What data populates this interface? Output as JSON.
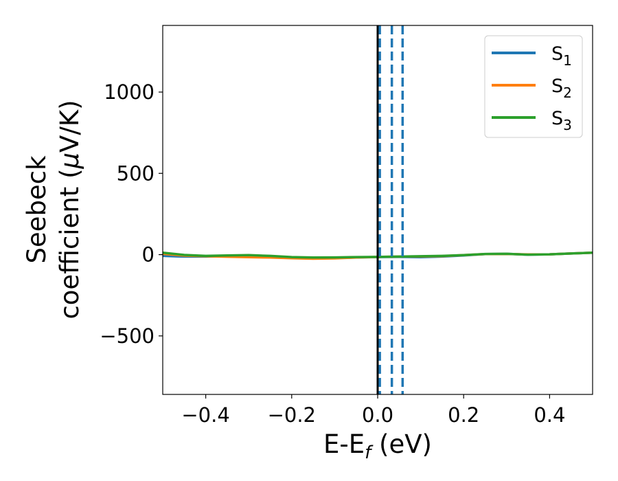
{
  "chart_data": {
    "type": "line",
    "xlabel": "E-E",
    "xlabel_sub": "f",
    "xlabel_unit": " (eV)",
    "ylabel_line1": "Seebeck",
    "ylabel_line2": "coefficient  (",
    "ylabel_mu": "μ",
    "ylabel_unit": "V/K)",
    "xlim": [
      -0.5,
      0.5
    ],
    "ylim": [
      -860,
      1410
    ],
    "xticks": [
      -0.4,
      -0.2,
      0.0,
      0.2,
      0.4
    ],
    "xtick_labels": [
      "−0.4",
      "−0.2",
      "0.0",
      "0.2",
      "0.4"
    ],
    "yticks": [
      -500,
      0,
      500,
      1000
    ],
    "ytick_labels": [
      "−500",
      "0",
      "500",
      "1000"
    ],
    "grid": false,
    "legend_position": "top-right",
    "vertical_lines": [
      {
        "x": 0.0,
        "color": "#000000",
        "style": "solid"
      },
      {
        "x": 0.005,
        "color": "#1f77b4",
        "style": "dashed"
      },
      {
        "x": 0.033,
        "color": "#1f77b4",
        "style": "dashed"
      },
      {
        "x": 0.058,
        "color": "#1f77b4",
        "style": "dashed"
      }
    ],
    "series": [
      {
        "name": "S",
        "sub": "1",
        "color": "#1f77b4",
        "x": [
          -0.5,
          -0.45,
          -0.4,
          -0.35,
          -0.3,
          -0.25,
          -0.2,
          -0.15,
          -0.1,
          -0.05,
          0.0,
          0.05,
          0.1,
          0.15,
          0.2,
          0.25,
          0.3,
          0.35,
          0.4,
          0.45,
          0.5
        ],
        "values": [
          -8,
          -12,
          -12,
          -10,
          -9,
          -12,
          -18,
          -22,
          -20,
          -17,
          -15,
          -14,
          -16,
          -12,
          -5,
          3,
          5,
          0,
          2,
          7,
          12
        ]
      },
      {
        "name": "S",
        "sub": "2",
        "color": "#ff7f0e",
        "x": [
          -0.5,
          -0.45,
          -0.4,
          -0.35,
          -0.3,
          -0.25,
          -0.2,
          -0.15,
          -0.1,
          -0.05,
          0.0,
          0.05,
          0.1,
          0.15,
          0.2,
          0.25,
          0.3,
          0.35,
          0.4,
          0.45,
          0.5
        ],
        "values": [
          5,
          -6,
          -10,
          -13,
          -16,
          -18,
          -22,
          -25,
          -23,
          -18,
          -14,
          -12,
          -11,
          -9,
          -3,
          3,
          4,
          1,
          2,
          7,
          12
        ]
      },
      {
        "name": "S",
        "sub": "3",
        "color": "#2ca02c",
        "x": [
          -0.5,
          -0.45,
          -0.4,
          -0.35,
          -0.3,
          -0.25,
          -0.2,
          -0.15,
          -0.1,
          -0.05,
          0.0,
          0.05,
          0.1,
          0.15,
          0.2,
          0.25,
          0.3,
          0.35,
          0.4,
          0.45,
          0.5
        ],
        "values": [
          12,
          -2,
          -8,
          -5,
          -3,
          -8,
          -15,
          -18,
          -17,
          -15,
          -14,
          -12,
          -10,
          -8,
          -3,
          4,
          5,
          0,
          2,
          7,
          12
        ]
      }
    ]
  }
}
